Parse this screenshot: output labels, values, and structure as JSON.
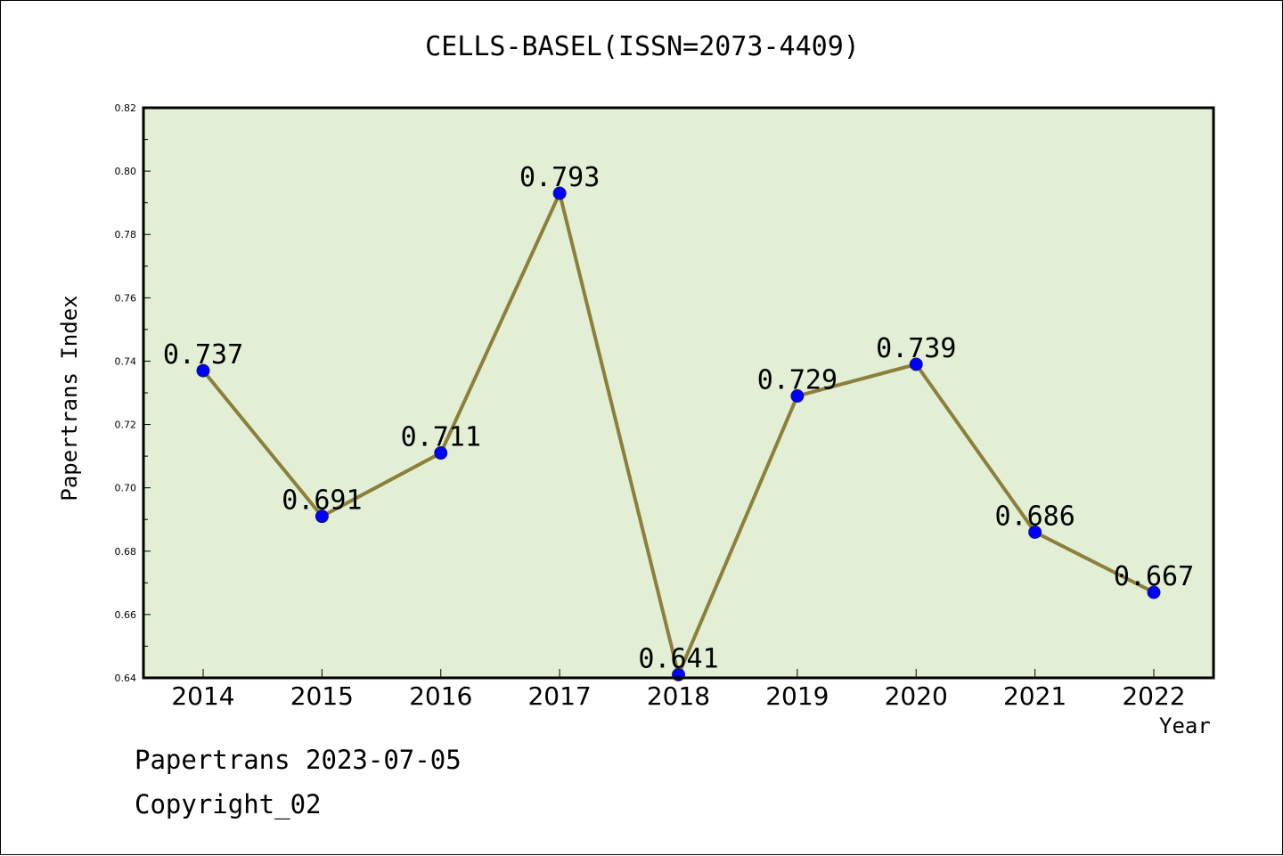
{
  "chart_data": {
    "type": "line",
    "title": "CELLS-BASEL(ISSN=2073-4409)",
    "xlabel": "Year",
    "ylabel": "Papertrans Index",
    "categories": [
      "2014",
      "2015",
      "2016",
      "2017",
      "2018",
      "2019",
      "2020",
      "2021",
      "2022"
    ],
    "series": [
      {
        "values": [
          0.737,
          0.691,
          0.711,
          0.793,
          0.641,
          0.729,
          0.739,
          0.686,
          0.667
        ],
        "labels": [
          "0.737",
          "0.691",
          "0.711",
          "0.793",
          "0.641",
          "0.729",
          "0.739",
          "0.686",
          "0.667"
        ]
      }
    ],
    "ylim": [
      0.64,
      0.82
    ],
    "yticks": [
      "0.64",
      "0.66",
      "0.68",
      "0.70",
      "0.72",
      "0.74",
      "0.76",
      "0.78",
      "0.80",
      "0.82"
    ],
    "grid": false,
    "colors": {
      "plot_background": "#e2efd5",
      "line": "#8b7f3a",
      "marker": "#0000ff"
    }
  },
  "footer": {
    "line1": "Papertrans 2023-07-05",
    "line2": "Copyright_02"
  }
}
